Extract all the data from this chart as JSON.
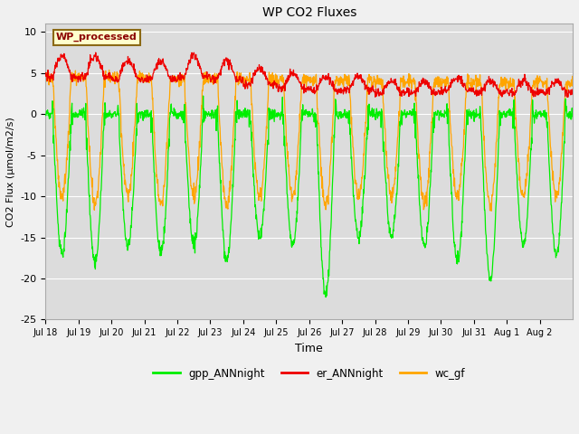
{
  "title": "WP CO2 Fluxes",
  "xlabel": "Time",
  "ylabel": "CO2 Flux (μmol/m2/s)",
  "ylim": [
    -25,
    11
  ],
  "yticks": [
    -25,
    -20,
    -15,
    -10,
    -5,
    0,
    5,
    10
  ],
  "n_days": 16,
  "points_per_day": 96,
  "xtick_labels": [
    "Jul 18",
    "Jul 19",
    "Jul 20",
    "Jul 21",
    "Jul 22",
    "Jul 23",
    "Jul 24",
    "Jul 25",
    "Jul 26",
    "Jul 27",
    "Jul 28",
    "Jul 29",
    "Jul 30",
    "Jul 31",
    "Aug 1",
    "Aug 2"
  ],
  "gpp_color": "#00ee00",
  "er_color": "#ee0000",
  "wc_color": "#ffa500",
  "legend_label": "WP_processed",
  "bg_color": "#dcdcdc",
  "grid_color": "#ffffff",
  "line_width": 0.9,
  "figwidth": 6.4,
  "figheight": 4.8,
  "dpi": 100
}
